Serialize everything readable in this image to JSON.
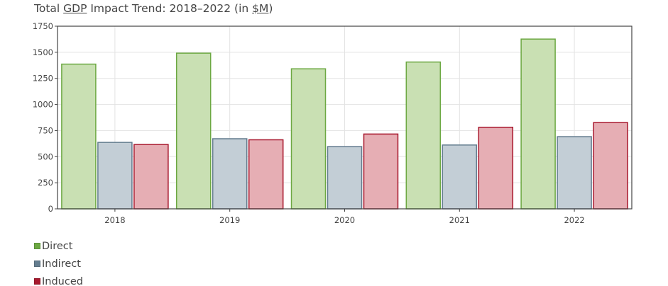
{
  "chart_data": {
    "type": "bar",
    "title_parts": [
      {
        "text": "Total ",
        "underline": false
      },
      {
        "text": "GDP",
        "underline": true
      },
      {
        "text": " Impact Trend: 2018–2022 (in ",
        "underline": false
      },
      {
        "text": "$M",
        "underline": true
      },
      {
        "text": ")",
        "underline": false
      }
    ],
    "categories": [
      "2018",
      "2019",
      "2020",
      "2021",
      "2022"
    ],
    "series": [
      {
        "name": "Direct",
        "values": [
          1390,
          1495,
          1345,
          1410,
          1630
        ],
        "fill": "#c9e0b3",
        "stroke": "#6ca842",
        "swatch": "#6ca842"
      },
      {
        "name": "Indirect",
        "values": [
          640,
          675,
          600,
          615,
          695
        ],
        "fill": "#c3ced6",
        "stroke": "#647d8f",
        "swatch": "#647d8f"
      },
      {
        "name": "Induced",
        "values": [
          620,
          665,
          720,
          785,
          830
        ],
        "fill": "#e6aeb4",
        "stroke": "#a8192e",
        "swatch": "#a8192e"
      }
    ],
    "ylim": [
      0,
      1750
    ],
    "yticks": [
      0,
      250,
      500,
      750,
      1000,
      1250,
      1500,
      1750
    ],
    "grid": true,
    "legend_position": "bottom-left"
  }
}
